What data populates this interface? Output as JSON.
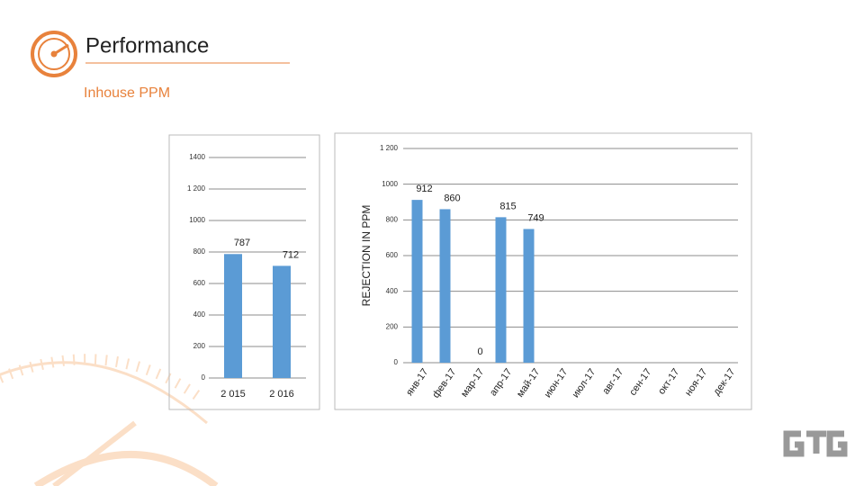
{
  "header": {
    "title": "Performance",
    "subtitle": "Inhouse PPM"
  },
  "chart_data": [
    {
      "type": "bar",
      "categories": [
        "2 015",
        "2 016"
      ],
      "values": [
        787,
        712
      ],
      "color": "#5b9bd5",
      "ylim": [
        0,
        1400
      ],
      "yticks": [
        0,
        200,
        400,
        600,
        800,
        1000,
        {
          "value": 1200,
          "label": "1 200"
        },
        1400
      ],
      "grid": true
    },
    {
      "type": "bar",
      "y_label": "REJECTION IN PPM",
      "categories": [
        "янв-17",
        "фев-17",
        "мар-17",
        "апр-17",
        "май-17",
        "июн-17",
        "июл-17",
        "авг-17",
        "сен-17",
        "окт-17",
        "ноя-17",
        "дек-17"
      ],
      "values": [
        912,
        860,
        0,
        815,
        749,
        null,
        null,
        null,
        null,
        null,
        null,
        null
      ],
      "color": "#5b9bd5",
      "ylim": [
        0,
        1200
      ],
      "yticks": [
        0,
        200,
        400,
        600,
        800,
        1000,
        {
          "value": 1200,
          "label": "1 200"
        }
      ],
      "grid": true
    }
  ]
}
